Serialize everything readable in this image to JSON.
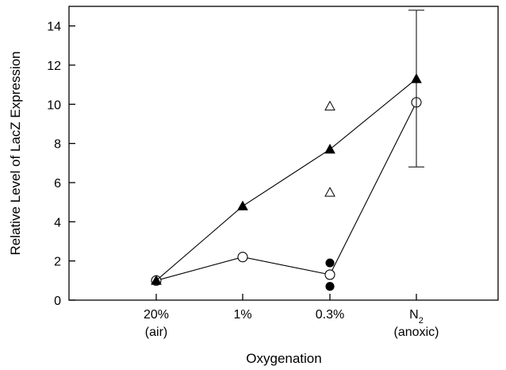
{
  "chart_data": {
    "type": "line",
    "xlabel": "Oxygenation",
    "ylabel": "Relative Level of LacZ Expression",
    "ylim": [
      0,
      15
    ],
    "yticks": [
      "0",
      "2",
      "4",
      "6",
      "8",
      "10",
      "12",
      "14"
    ],
    "grid": false,
    "categories": [
      {
        "line1": "20%",
        "line2": "(air)"
      },
      {
        "line1": "1%",
        "line2": ""
      },
      {
        "line1": "0.3%",
        "line2": ""
      },
      {
        "line1": "N",
        "sub": "2",
        "line2": "(anoxic)"
      }
    ],
    "series": [
      {
        "marker": "filled-triangle",
        "connected": true,
        "points": [
          {
            "x": 0,
            "y": 1.0
          },
          {
            "x": 1,
            "y": 4.8
          },
          {
            "x": 2,
            "y": 7.7
          },
          {
            "x": 3,
            "y": 11.3,
            "error_upper": 14.8,
            "error_lower": 6.8
          }
        ]
      },
      {
        "marker": "open-circle",
        "connected": true,
        "points": [
          {
            "x": 0,
            "y": 1.0
          },
          {
            "x": 1,
            "y": 2.2
          },
          {
            "x": 2,
            "y": 1.3
          },
          {
            "x": 3,
            "y": 10.1
          }
        ]
      },
      {
        "marker": "open-triangle",
        "connected": false,
        "points": [
          {
            "x": 2,
            "y": 9.9
          },
          {
            "x": 2,
            "y": 5.5
          }
        ]
      },
      {
        "marker": "filled-circle",
        "connected": false,
        "points": [
          {
            "x": 2,
            "y": 1.9
          },
          {
            "x": 2,
            "y": 0.7
          }
        ]
      }
    ]
  }
}
